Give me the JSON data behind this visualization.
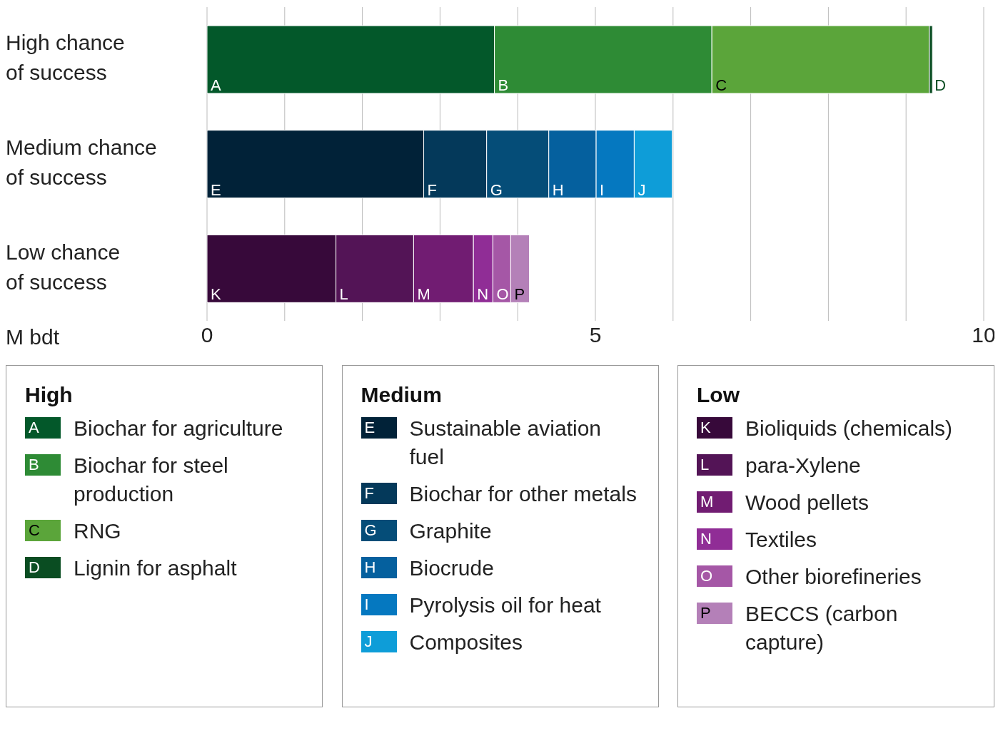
{
  "chart_data": {
    "type": "bar",
    "orientation": "horizontal",
    "stacked": true,
    "categories": [
      "High chance of success",
      "Medium chance of success",
      "Low chance of success"
    ],
    "series": [
      {
        "name": "Biochar for agriculture",
        "color": "#03582a",
        "values": [
          3.7,
          null,
          null
        ],
        "value_labels": [
          "A",
          null,
          null
        ]
      },
      {
        "name": "Biochar for steel production",
        "color": "#2e8b35",
        "values": [
          2.8,
          null,
          null
        ],
        "value_labels": [
          "B",
          null,
          null
        ]
      },
      {
        "name": "RNG",
        "color": "#5ba53a",
        "values": [
          2.8,
          null,
          null
        ],
        "value_labels": [
          "C",
          null,
          null
        ]
      },
      {
        "name": "Lignin for asphalt",
        "color": "#0a4d22",
        "values": [
          0.04,
          null,
          null
        ],
        "value_labels": [
          "D",
          null,
          null
        ]
      },
      {
        "name": "Sustainable aviation fuel",
        "color": "#012238",
        "values": [
          null,
          2.79,
          null
        ],
        "value_labels": [
          null,
          "E",
          null
        ]
      },
      {
        "name": "Biochar for other metals",
        "color": "#04395a",
        "values": [
          null,
          0.81,
          null
        ],
        "value_labels": [
          null,
          "F",
          null
        ]
      },
      {
        "name": "Graphite",
        "color": "#054d78",
        "values": [
          null,
          0.8,
          null
        ],
        "value_labels": [
          null,
          "G",
          null
        ]
      },
      {
        "name": "Biocrude",
        "color": "#05609e",
        "values": [
          null,
          0.61,
          null
        ],
        "value_labels": [
          null,
          "H",
          null
        ]
      },
      {
        "name": "Pyrolysis oil for heat",
        "color": "#0578c0",
        "values": [
          null,
          0.49,
          null
        ],
        "value_labels": [
          null,
          "I",
          null
        ]
      },
      {
        "name": "Composites",
        "color": "#0e9dd8",
        "values": [
          null,
          0.49,
          null
        ],
        "value_labels": [
          null,
          "J",
          null
        ]
      },
      {
        "name": "Bioliquids (chemicals)",
        "color": "#37093a",
        "values": [
          null,
          null,
          1.66
        ],
        "value_labels": [
          null,
          null,
          "K"
        ]
      },
      {
        "name": "para-Xylene",
        "color": "#531456",
        "values": [
          null,
          null,
          1.0
        ],
        "value_labels": [
          null,
          null,
          "L"
        ]
      },
      {
        "name": "Wood pellets",
        "color": "#711c72",
        "values": [
          null,
          null,
          0.77
        ],
        "value_labels": [
          null,
          null,
          "M"
        ]
      },
      {
        "name": "Textiles",
        "color": "#902d96",
        "values": [
          null,
          null,
          0.25
        ],
        "value_labels": [
          null,
          null,
          "N"
        ]
      },
      {
        "name": "Other biorefineries",
        "color": "#a557a6",
        "values": [
          null,
          null,
          0.23
        ],
        "value_labels": [
          null,
          null,
          "O"
        ]
      },
      {
        "name": "BECCS (carbon capture)",
        "color": "#b480b8",
        "values": [
          null,
          null,
          0.24
        ],
        "value_labels": [
          null,
          null,
          "P"
        ]
      }
    ],
    "xlabel": "M bdt",
    "xlim": [
      0,
      10
    ],
    "xticks": [
      0,
      {
        "value": 1,
        "label": null
      },
      {
        "value": 2,
        "label": null
      },
      {
        "value": 3,
        "label": null
      },
      {
        "value": 4,
        "label": null
      },
      5,
      {
        "value": 6,
        "label": null
      },
      {
        "value": 7,
        "label": null
      },
      {
        "value": 8,
        "label": null
      },
      {
        "value": 9,
        "label": null
      },
      10
    ],
    "grid": "x",
    "legend": "bottom",
    "annotations": [
      "High",
      "Medium",
      "Low"
    ]
  }
}
